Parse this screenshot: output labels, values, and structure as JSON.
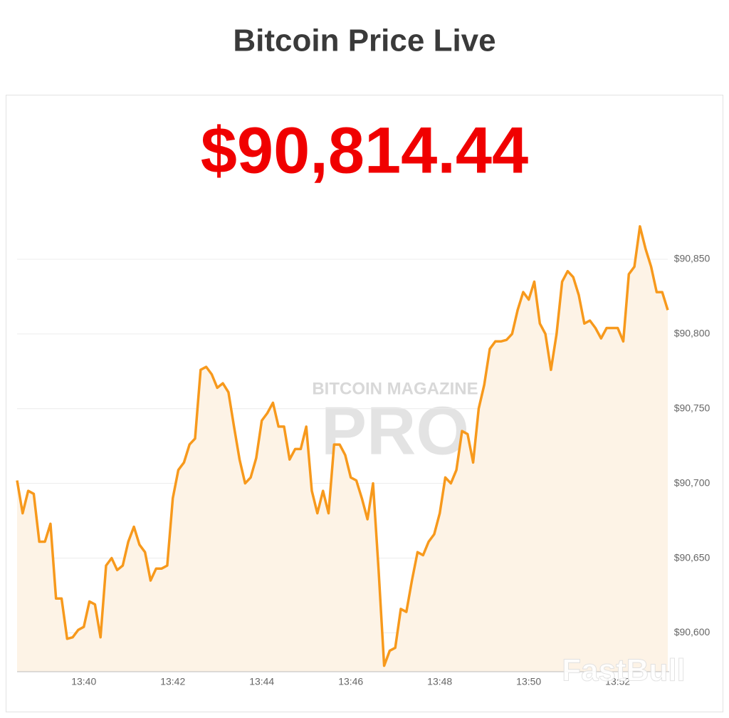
{
  "chart_data": {
    "type": "line",
    "title": "Bitcoin Price Live",
    "price": "$90,814.44",
    "watermarks": [
      "BITCOIN MAGAZINE",
      "PRO",
      "FastBull"
    ],
    "color": "#f7991c",
    "area_color": "#fdf3e6",
    "grid": true,
    "ylim": [
      90574,
      90880
    ],
    "yticks": [
      {
        "value": 90600,
        "label": "$90,600"
      },
      {
        "value": 90650,
        "label": "$90,650"
      },
      {
        "value": 90700,
        "label": "$90,700"
      },
      {
        "value": 90750,
        "label": "$90,750"
      },
      {
        "value": 90800,
        "label": "$90,800"
      },
      {
        "value": 90850,
        "label": "$90,850"
      }
    ],
    "categories": [
      null,
      null,
      null,
      null,
      null,
      null,
      null,
      null,
      null,
      null,
      null,
      null,
      "13:40",
      null,
      null,
      null,
      null,
      null,
      null,
      null,
      null,
      null,
      null,
      null,
      null,
      null,
      null,
      null,
      "13:42",
      null,
      null,
      null,
      null,
      null,
      null,
      null,
      null,
      null,
      null,
      null,
      null,
      null,
      null,
      null,
      "13:44",
      null,
      null,
      null,
      null,
      null,
      null,
      null,
      null,
      null,
      null,
      null,
      null,
      null,
      null,
      null,
      "13:46",
      null,
      null,
      null,
      null,
      null,
      null,
      null,
      null,
      null,
      null,
      null,
      null,
      null,
      null,
      null,
      "13:48",
      null,
      null,
      null,
      null,
      null,
      null,
      null,
      null,
      null,
      null,
      null,
      null,
      null,
      null,
      null,
      "13:50",
      null,
      null,
      null,
      null,
      null,
      null,
      null,
      null,
      null,
      null,
      null,
      null,
      null,
      null,
      null,
      "13:52",
      null,
      null,
      null,
      null,
      null,
      null,
      null,
      null,
      null
    ],
    "values": [
      90702,
      90680,
      90695,
      90693,
      90661,
      90661,
      90673,
      90623,
      90623,
      90596,
      90597,
      90602,
      90604,
      90621,
      90619,
      90597,
      90645,
      90650,
      90642,
      90645,
      90661,
      90671,
      90659,
      90654,
      90635,
      90643,
      90643,
      90645,
      90690,
      90709,
      90714,
      90726,
      90730,
      90776,
      90778,
      90773,
      90764,
      90767,
      90761,
      90738,
      90716,
      90700,
      90704,
      90717,
      90742,
      90747,
      90754,
      90738,
      90738,
      90716,
      90723,
      90723,
      90738,
      90695,
      90680,
      90695,
      90680,
      90726,
      90726,
      90719,
      90704,
      90702,
      90690,
      90676,
      90700,
      90642,
      90578,
      90588,
      90590,
      90616,
      90614,
      90635,
      90654,
      90652,
      90661,
      90666,
      90680,
      90704,
      90700,
      90709,
      90735,
      90733,
      90714,
      90750,
      90766,
      90790,
      90795,
      90795,
      90796,
      90800,
      90816,
      90828,
      90823,
      90835,
      90807,
      90800,
      90776,
      90800,
      90835,
      90842,
      90838,
      90826,
      90807,
      90809,
      90804,
      90797,
      90804,
      90804,
      90804,
      90795,
      90840,
      90845,
      90872,
      90857,
      90845,
      90828,
      90828,
      90816
    ]
  }
}
